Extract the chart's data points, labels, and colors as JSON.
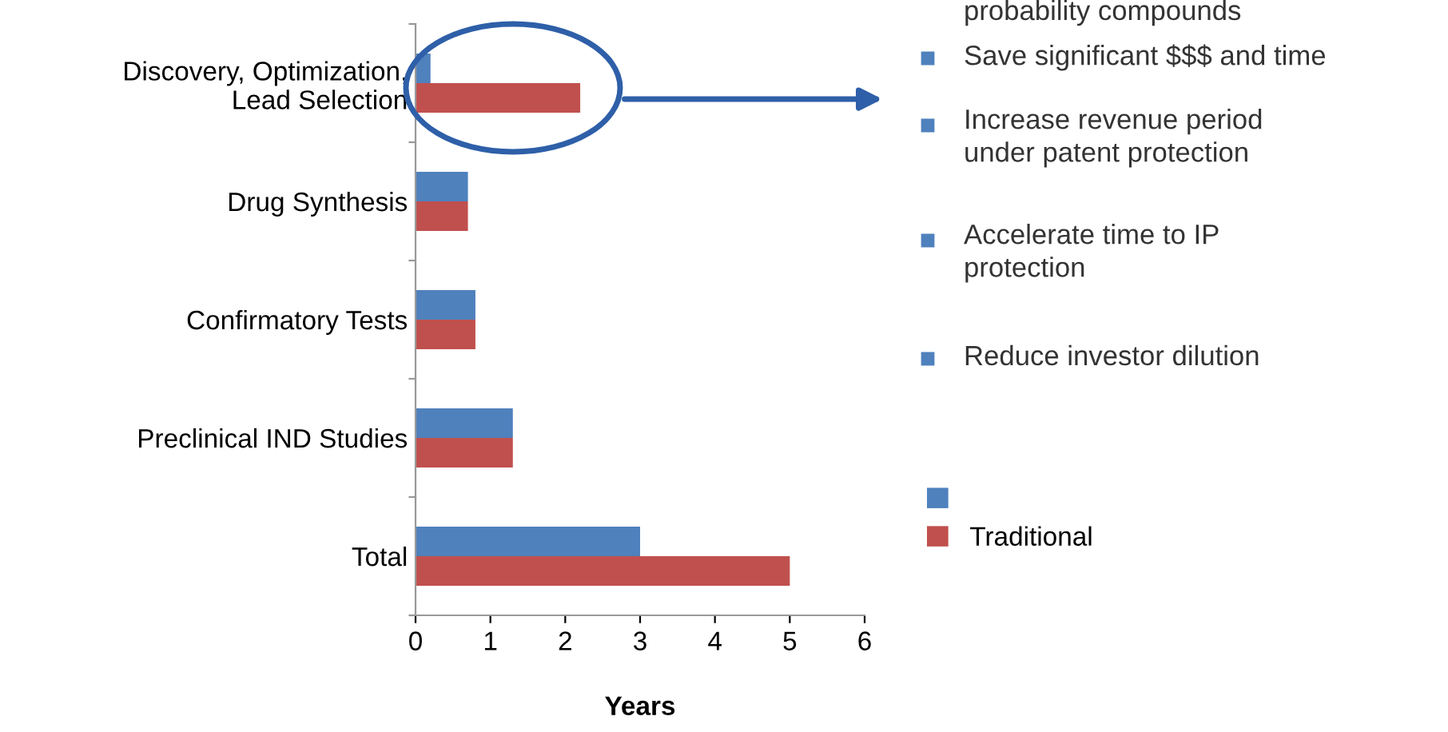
{
  "chart_data": {
    "type": "bar",
    "orientation": "horizontal",
    "xlabel": "Years",
    "categories": [
      "Discovery, Optimization,\nLead Selection",
      "Drug Synthesis",
      "Confirmatory Tests",
      "Preclinical IND Studies",
      "Total"
    ],
    "series": [
      {
        "color": "#4f81bd",
        "values": [
          0.2,
          0.7,
          0.8,
          1.3,
          3
        ]
      },
      {
        "name": "Traditional",
        "color": "#c0504d",
        "values": [
          2.2,
          0.7,
          0.8,
          1.3,
          5
        ]
      }
    ],
    "xlim": [
      0,
      6
    ],
    "xticks": [
      0,
      1,
      2,
      3,
      4,
      5,
      6
    ],
    "grid": false,
    "legend": "right",
    "annotations": [
      "probability compounds",
      "Save significant $$$ and time",
      "Increase revenue period\nunder patent protection",
      "Accelerate time to IP\nprotection",
      "Reduce investor dilution"
    ]
  }
}
